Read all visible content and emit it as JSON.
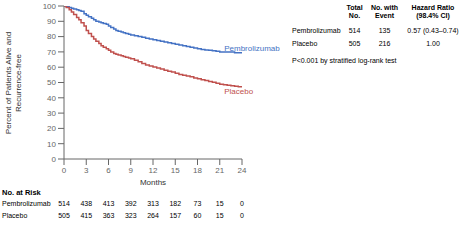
{
  "chart_data": {
    "type": "line",
    "xlabel": "Months",
    "ylabel": "Percent of Patients Alive and\nRecurrence-free",
    "xlim": [
      0,
      24
    ],
    "ylim": [
      0,
      100
    ],
    "xticks": [
      0,
      3,
      6,
      9,
      12,
      15,
      18,
      21,
      24
    ],
    "yticks": [
      0,
      10,
      20,
      30,
      40,
      50,
      60,
      70,
      80,
      90,
      100
    ],
    "grid": false,
    "line_style": "step",
    "x": [
      0,
      0.3,
      0.7,
      1.0,
      1.3,
      1.7,
      2.0,
      2.3,
      2.7,
      3.0,
      3.3,
      3.7,
      4.0,
      4.3,
      4.7,
      5.0,
      5.3,
      5.7,
      6.0,
      6.3,
      6.7,
      7.0,
      7.3,
      7.7,
      8.0,
      8.3,
      8.7,
      9.0,
      9.5,
      10.0,
      10.5,
      11.0,
      11.5,
      12.0,
      12.5,
      13.0,
      13.5,
      14.0,
      14.5,
      15.0,
      15.5,
      16.0,
      16.5,
      17.0,
      17.5,
      18.0,
      18.5,
      19.0,
      19.5,
      20.0,
      20.5,
      21.0,
      21.5,
      22.0,
      22.5,
      23.0,
      23.5,
      24.0
    ],
    "series": [
      {
        "name": "Pembrolizumab",
        "color": "#4472C4",
        "values": [
          100,
          99.5,
          99,
          98.5,
          98,
          97.5,
          97,
          96.5,
          95,
          94,
          93,
          92,
          91,
          90,
          89.5,
          89,
          88.5,
          88,
          87,
          86,
          85,
          84,
          83.5,
          83,
          82.5,
          82,
          81.5,
          81,
          80.5,
          80,
          79.5,
          79,
          78.5,
          78,
          77.5,
          77,
          76.5,
          76,
          75.5,
          75,
          74.5,
          74,
          73.5,
          73,
          72.5,
          72,
          71.5,
          71.2,
          71,
          70.8,
          70.5,
          70,
          70,
          70,
          70,
          69.5,
          69.5,
          69.5
        ]
      },
      {
        "name": "Placebo",
        "color": "#C0504D",
        "values": [
          100,
          99,
          97.5,
          96,
          94.5,
          92.5,
          91,
          89,
          87,
          84,
          82,
          80,
          78.5,
          77,
          75.5,
          74,
          73,
          72,
          71,
          70,
          69,
          68.5,
          68,
          67.5,
          67,
          66.5,
          66,
          65.5,
          64.5,
          63.5,
          62.5,
          61.5,
          60.8,
          60.2,
          59.5,
          58.8,
          58,
          57.3,
          56.8,
          56,
          55.3,
          54.7,
          54.2,
          53.7,
          53,
          52.5,
          51.8,
          51.3,
          50.7,
          50.2,
          49.5,
          48.8,
          48.5,
          48.2,
          47.8,
          47.5,
          47.2,
          47
        ]
      }
    ],
    "annotations": [
      {
        "text": "Pembrolizumab",
        "x": 21.6,
        "y": 72.5,
        "color": "#4472C4"
      },
      {
        "text": "Placebo",
        "x": 21.6,
        "y": 44.5,
        "color": "#C0504D"
      }
    ],
    "table": {
      "columns": [
        "Total\nNo.",
        "No. with\nEvent",
        "Hazard Ratio\n(98.4% CI)"
      ],
      "rows": [
        {
          "label": "Pembrolizumab",
          "cells": [
            514,
            135,
            "0.57 (0.43–0.74)"
          ]
        },
        {
          "label": "Placebo",
          "cells": [
            505,
            216,
            "1.00"
          ]
        }
      ]
    },
    "note": "P<0.001 by stratified log-rank test",
    "no_at_risk": {
      "label": "No. at Risk",
      "x": [
        0,
        3,
        6,
        9,
        12,
        15,
        18,
        21,
        24
      ],
      "rows": [
        {
          "name": "Pembrolizumab",
          "values": [
            514,
            438,
            413,
            392,
            313,
            182,
            73,
            15,
            0
          ]
        },
        {
          "name": "Placebo",
          "values": [
            505,
            415,
            363,
            323,
            264,
            157,
            60,
            15,
            0
          ]
        }
      ]
    }
  }
}
